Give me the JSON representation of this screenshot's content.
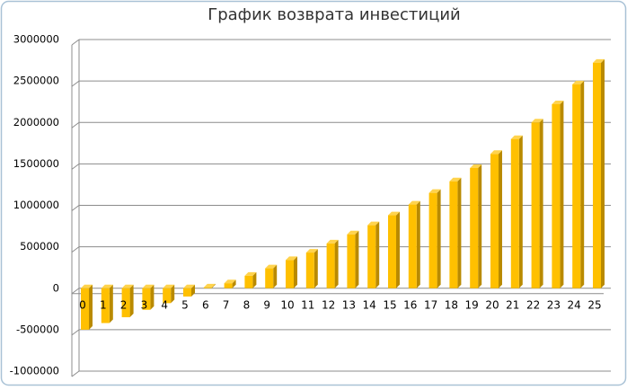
{
  "chart_data": {
    "type": "bar",
    "title": "График возврата инвестиций",
    "categories": [
      "0",
      "1",
      "2",
      "3",
      "4",
      "5",
      "6",
      "7",
      "8",
      "9",
      "10",
      "11",
      "12",
      "13",
      "14",
      "15",
      "16",
      "17",
      "18",
      "19",
      "20",
      "21",
      "22",
      "23",
      "24",
      "25"
    ],
    "values": [
      -500000,
      -420000,
      -350000,
      -260000,
      -180000,
      -100000,
      10000,
      60000,
      150000,
      240000,
      340000,
      430000,
      540000,
      650000,
      760000,
      880000,
      1010000,
      1150000,
      1290000,
      1450000,
      1620000,
      1800000,
      2000000,
      2220000,
      2460000,
      2720000
    ],
    "color": "#ffc000",
    "ylim": [
      -1000000,
      3000000
    ],
    "yticks": [
      -1000000,
      -500000,
      0,
      500000,
      1000000,
      1500000,
      2000000,
      2500000,
      3000000
    ],
    "grid": true
  }
}
